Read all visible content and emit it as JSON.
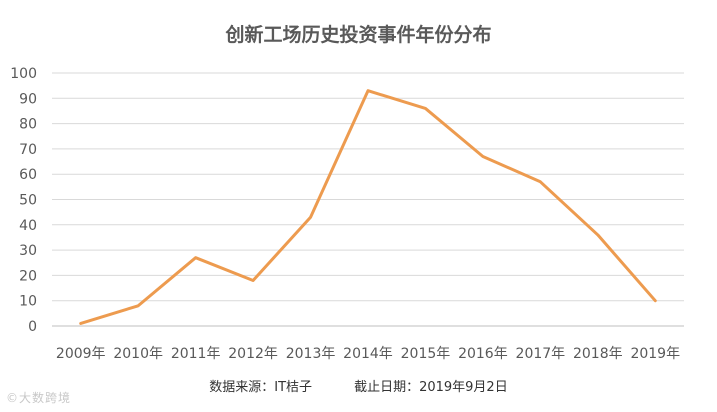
{
  "chart_data": {
    "type": "line",
    "title": "创新工场历史投资事件年份分布",
    "categories": [
      "2009年",
      "2010年",
      "2011年",
      "2012年",
      "2013年",
      "2014年",
      "2015年",
      "2016年",
      "2017年",
      "2018年",
      "2019年"
    ],
    "series": [
      {
        "values": [
          1,
          8,
          27,
          18,
          43,
          93,
          86,
          67,
          57,
          36,
          10
        ],
        "color": "#ED9B4F"
      }
    ],
    "ylim": [
      0,
      100
    ],
    "yticks": [
      0,
      10,
      20,
      30,
      40,
      50,
      60,
      70,
      80,
      90,
      100
    ],
    "xlabel": "",
    "ylabel": "",
    "grid": "horizontal",
    "gridColor": "#d9d9d9"
  },
  "footer": {
    "source": "数据来源：IT桔子",
    "date": "截止日期：2019年9月2日"
  },
  "watermark": "©大数跨境"
}
